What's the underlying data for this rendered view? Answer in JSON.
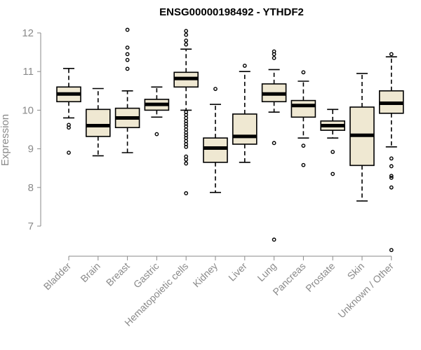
{
  "chart_data": {
    "type": "boxplot",
    "title": "ENSG00000198492 - YTHDF2",
    "xlabel": "",
    "ylabel": "Expression",
    "ylim": [
      6.2,
      12.2
    ],
    "yticks": [
      7,
      8,
      9,
      10,
      11,
      12
    ],
    "grid": false,
    "box_fill": "#efe8d2",
    "categories": [
      "Bladder",
      "Brain",
      "Breast",
      "Gastric",
      "Hematopoietic cells",
      "Kidney",
      "Liver",
      "Lung",
      "Pancreas",
      "Prostate",
      "Skin",
      "Unknown / Other"
    ],
    "boxes": [
      {
        "q1": 10.22,
        "median": 10.42,
        "q3": 10.6,
        "whisker_low": 9.8,
        "whisker_high": 11.08,
        "outliers": [
          9.62,
          9.55,
          8.9
        ]
      },
      {
        "q1": 9.32,
        "median": 9.6,
        "q3": 10.02,
        "whisker_low": 8.82,
        "whisker_high": 10.56,
        "outliers": []
      },
      {
        "q1": 9.55,
        "median": 9.8,
        "q3": 10.05,
        "whisker_low": 8.9,
        "whisker_high": 10.5,
        "outliers": [
          12.08,
          11.62,
          11.45,
          11.3,
          11.07
        ]
      },
      {
        "q1": 10.0,
        "median": 10.15,
        "q3": 10.28,
        "whisker_low": 9.82,
        "whisker_high": 10.6,
        "outliers": [
          9.38
        ]
      },
      {
        "q1": 10.6,
        "median": 10.82,
        "q3": 10.98,
        "whisker_low": 10.0,
        "whisker_high": 11.58,
        "outliers": [
          12.05,
          11.95,
          11.8,
          11.7,
          9.95,
          9.88,
          9.8,
          9.72,
          9.65,
          9.58,
          9.5,
          9.42,
          9.35,
          9.28,
          9.2,
          9.12,
          9.05,
          8.8,
          8.72,
          8.62,
          7.85
        ]
      },
      {
        "q1": 8.65,
        "median": 9.02,
        "q3": 9.28,
        "whisker_low": 7.87,
        "whisker_high": 10.15,
        "outliers": [
          10.55
        ]
      },
      {
        "q1": 9.12,
        "median": 9.32,
        "q3": 9.9,
        "whisker_low": 8.65,
        "whisker_high": 11.0,
        "outliers": [
          11.15
        ]
      },
      {
        "q1": 10.22,
        "median": 10.42,
        "q3": 10.68,
        "whisker_low": 9.95,
        "whisker_high": 11.05,
        "outliers": [
          11.52,
          11.45,
          11.35,
          9.15,
          6.65
        ]
      },
      {
        "q1": 9.82,
        "median": 10.12,
        "q3": 10.25,
        "whisker_low": 9.28,
        "whisker_high": 10.75,
        "outliers": [
          10.98,
          9.08,
          8.58
        ]
      },
      {
        "q1": 9.48,
        "median": 9.6,
        "q3": 9.72,
        "whisker_low": 9.28,
        "whisker_high": 10.02,
        "outliers": [
          8.92,
          8.35
        ]
      },
      {
        "q1": 8.57,
        "median": 9.35,
        "q3": 10.08,
        "whisker_low": 7.65,
        "whisker_high": 10.95,
        "outliers": []
      },
      {
        "q1": 9.92,
        "median": 10.18,
        "q3": 10.5,
        "whisker_low": 9.05,
        "whisker_high": 11.38,
        "outliers": [
          11.45,
          8.75,
          8.55,
          8.3,
          8.25,
          8.0,
          6.38
        ]
      }
    ]
  }
}
